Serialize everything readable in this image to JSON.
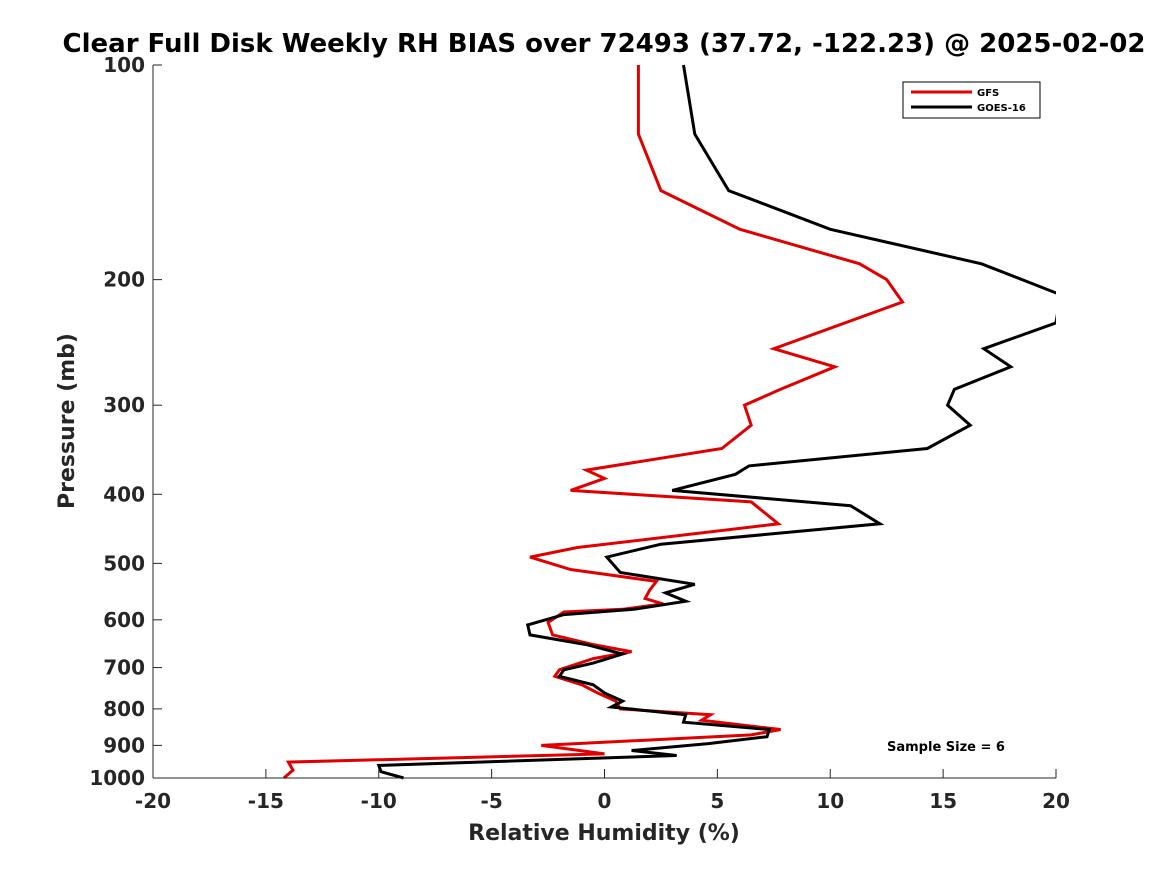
{
  "chart_data": {
    "type": "line",
    "title": "Clear Full Disk Weekly RH BIAS over 72493 (37.72, -122.23) @ 2025-02-02",
    "xlabel": "Relative Humidity (%)",
    "ylabel": "Pressure (mb)",
    "xlim": [
      -20,
      20
    ],
    "ylim": [
      100,
      1000
    ],
    "yscale": "log",
    "y_reversed": true,
    "x_ticks": [
      "-20",
      "-15",
      "-10",
      "-5",
      "0",
      "5",
      "10",
      "15",
      "20"
    ],
    "x_tick_values": [
      -20,
      -15,
      -10,
      -5,
      0,
      5,
      10,
      15,
      20
    ],
    "y_ticks": [
      "100",
      "200",
      "300",
      "400",
      "500",
      "600",
      "700",
      "800",
      "900",
      "1000"
    ],
    "y_tick_values": [
      100,
      200,
      300,
      400,
      500,
      600,
      700,
      800,
      900,
      1000
    ],
    "grid": false,
    "legend": {
      "position": "top-right",
      "entries": [
        "GFS",
        "GOES-16"
      ]
    },
    "annotation": "Sample Size = 6",
    "series": [
      {
        "name": "GFS",
        "color": "#e00000",
        "points": [
          [
            1.5,
            100
          ],
          [
            1.5,
            125
          ],
          [
            2.5,
            150
          ],
          [
            6.0,
            170
          ],
          [
            11.3,
            190
          ],
          [
            12.5,
            200
          ],
          [
            13.2,
            215
          ],
          [
            7.5,
            250
          ],
          [
            10.2,
            265
          ],
          [
            7.8,
            285
          ],
          [
            6.2,
            300
          ],
          [
            6.5,
            320
          ],
          [
            5.2,
            345
          ],
          [
            -0.8,
            370
          ],
          [
            0.0,
            380
          ],
          [
            -1.5,
            395
          ],
          [
            6.5,
            410
          ],
          [
            7.7,
            440
          ],
          [
            -1.2,
            475
          ],
          [
            -3.3,
            490
          ],
          [
            -1.5,
            510
          ],
          [
            2.3,
            530
          ],
          [
            2.0,
            545
          ],
          [
            1.8,
            560
          ],
          [
            2.6,
            570
          ],
          [
            0.8,
            580
          ],
          [
            -1.8,
            585
          ],
          [
            -2.5,
            605
          ],
          [
            -2.3,
            630
          ],
          [
            -0.5,
            650
          ],
          [
            1.2,
            665
          ],
          [
            -0.5,
            680
          ],
          [
            -2.0,
            705
          ],
          [
            -2.2,
            720
          ],
          [
            -1.0,
            740
          ],
          [
            -0.3,
            760
          ],
          [
            0.5,
            780
          ],
          [
            0.7,
            800
          ],
          [
            4.7,
            815
          ],
          [
            4.3,
            830
          ],
          [
            7.8,
            855
          ],
          [
            6.5,
            870
          ],
          [
            -2.8,
            900
          ],
          [
            0.0,
            925
          ],
          [
            -14.0,
            950
          ],
          [
            -13.8,
            975
          ],
          [
            -14.2,
            1000
          ]
        ]
      },
      {
        "name": "GOES-16",
        "color": "#000000",
        "points": [
          [
            3.5,
            100
          ],
          [
            4.0,
            125
          ],
          [
            5.5,
            150
          ],
          [
            10.0,
            170
          ],
          [
            16.7,
            190
          ],
          [
            18.5,
            200
          ],
          [
            20.2,
            210
          ],
          [
            20.0,
            230
          ],
          [
            16.8,
            250
          ],
          [
            18.0,
            265
          ],
          [
            15.5,
            285
          ],
          [
            15.2,
            300
          ],
          [
            16.2,
            320
          ],
          [
            14.3,
            345
          ],
          [
            6.4,
            365
          ],
          [
            5.8,
            375
          ],
          [
            3.0,
            395
          ],
          [
            10.9,
            415
          ],
          [
            12.2,
            440
          ],
          [
            2.5,
            470
          ],
          [
            0.1,
            490
          ],
          [
            0.7,
            515
          ],
          [
            4.0,
            535
          ],
          [
            2.7,
            550
          ],
          [
            3.6,
            565
          ],
          [
            1.3,
            580
          ],
          [
            -1.8,
            590
          ],
          [
            -3.4,
            610
          ],
          [
            -3.3,
            630
          ],
          [
            -0.8,
            650
          ],
          [
            0.8,
            670
          ],
          [
            -0.5,
            690
          ],
          [
            -1.8,
            705
          ],
          [
            -2.0,
            720
          ],
          [
            -0.5,
            740
          ],
          [
            0.0,
            760
          ],
          [
            0.8,
            780
          ],
          [
            0.3,
            795
          ],
          [
            3.6,
            815
          ],
          [
            3.5,
            835
          ],
          [
            7.3,
            855
          ],
          [
            7.2,
            875
          ],
          [
            4.6,
            895
          ],
          [
            1.2,
            915
          ],
          [
            3.2,
            930
          ],
          [
            -10.0,
            960
          ],
          [
            -9.9,
            980
          ],
          [
            -8.9,
            1000
          ]
        ]
      }
    ]
  }
}
